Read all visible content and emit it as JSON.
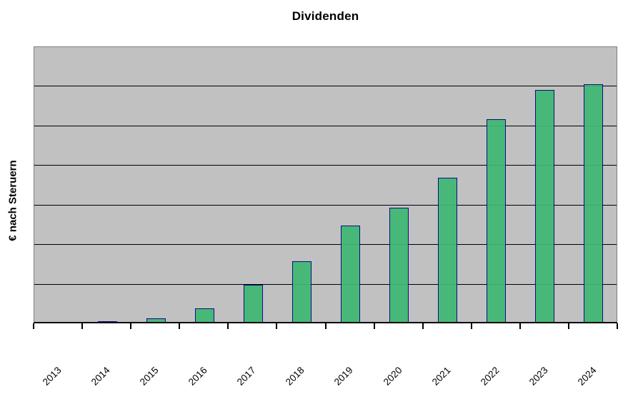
{
  "chart": {
    "title": "Dividenden",
    "y_axis_label": "€ nach Steruern"
  },
  "chart_data": {
    "type": "bar",
    "title": "Dividenden",
    "categories": [
      "2013",
      "2014",
      "2015",
      "2016",
      "2017",
      "2018",
      "2019",
      "2020",
      "2021",
      "2022",
      "2023",
      "2024"
    ],
    "values": [
      0,
      0.04,
      0.11,
      0.36,
      0.95,
      1.55,
      2.45,
      2.9,
      3.66,
      5.14,
      5.88,
      6.03
    ],
    "xlabel": "",
    "ylabel": "€ nach Steruern",
    "ylim": [
      0,
      7
    ],
    "y_tick_labels_visible": false,
    "gridlines": "horizontal",
    "gridline_count": 6,
    "legend": "none",
    "value_units": "relative gridline units (no numeric y-axis labels shown; 1 unit = one gridline interval)"
  },
  "colors": {
    "bar_fill": "#3EB873",
    "bar_border": "#000080",
    "plot_background": "#C1C1C1",
    "plot_border": "#808080",
    "gridline": "#000000",
    "axis": "#000000",
    "text": "#000000",
    "page_background": "#FFFFFF"
  }
}
